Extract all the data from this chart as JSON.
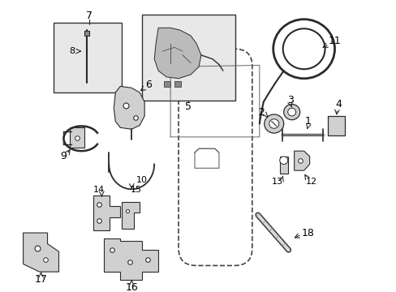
{
  "bg_color": "#ffffff",
  "line_color": "#2a2a2a",
  "gray_fill": "#d0d0d0",
  "light_gray": "#e8e8e8",
  "figsize": [
    4.89,
    3.6
  ],
  "dpi": 100,
  "xlim": [
    0,
    489
  ],
  "ylim": [
    360,
    0
  ]
}
